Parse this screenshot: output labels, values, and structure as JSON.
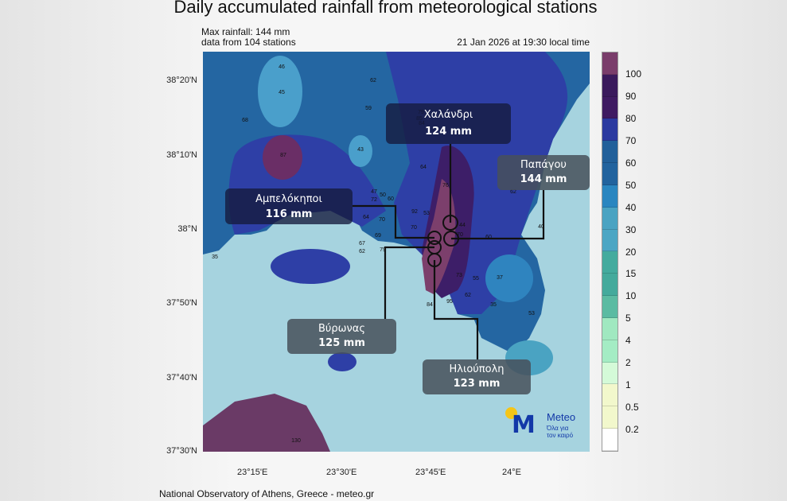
{
  "title": "Daily accumulated rainfall from meteorological stations",
  "max_rainfall": "Max rainfall: 144 mm",
  "stations_count": "data from 104 stations",
  "timestamp": "21 Jan 2026 at 19:30 local time",
  "footer": "National Observatory of Athens, Greece - meteo.gr",
  "lat_ticks": [
    "38°20'N",
    "38°10'N",
    "38°N",
    "37°50'N",
    "37°40'N",
    "37°30'N"
  ],
  "lon_ticks": [
    "23°15'E",
    "23°30'E",
    "23°45'E",
    "24°E"
  ],
  "colorbar": {
    "labels": [
      "100",
      "90",
      "80",
      "70",
      "60",
      "50",
      "40",
      "30",
      "20",
      "15",
      "10",
      "5",
      "4",
      "2",
      "1",
      "0.5",
      "0.2"
    ],
    "colors": [
      "#7a3d6b",
      "#3a1a5c",
      "#3f1b62",
      "#2b3aa0",
      "#22609a",
      "#22639e",
      "#2a86c0",
      "#4aa3c2",
      "#4ca6c4",
      "#44ab9e",
      "#44aa9c",
      "#5bbba2",
      "#a0e8c0",
      "#a4ecc4",
      "#d4fad8",
      "#f2f8cc",
      "#f2f8cc",
      "#ffffff"
    ]
  },
  "colors": {
    "sea": "#a6d3df",
    "land60": "#2466a2",
    "land70": "#2e3fa6",
    "land80": "#3d1e68",
    "land100": "#7c3f6c",
    "light40": "#4a9fcb"
  },
  "callouts": [
    {
      "name": "Χαλάνδρι",
      "value": "124 mm",
      "circle": "124"
    },
    {
      "name": "Παπάγου",
      "value": "144 mm",
      "circle": "144"
    },
    {
      "name": "Αμπελόκηποι",
      "value": "116 mm",
      "circle": "116"
    },
    {
      "name": "Βύρωνας",
      "value": "125 mm",
      "circle": "125"
    },
    {
      "name": "Ηλιούπολη",
      "value": "123 mm",
      "circle": "123"
    }
  ],
  "station_values": [
    "46",
    "45",
    "62",
    "59",
    "68",
    "87",
    "43",
    "72",
    "79",
    "64",
    "85",
    "84",
    "47",
    "50",
    "60",
    "53",
    "92",
    "76",
    "62",
    "64",
    "70",
    "69",
    "44",
    "70",
    "60",
    "40",
    "67",
    "62",
    "79",
    "73",
    "55",
    "37",
    "62",
    "35",
    "53",
    "95",
    "84",
    "70",
    "130",
    "35"
  ],
  "logo": {
    "name": "Meteo",
    "tagline1": "Όλα για",
    "tagline2": "τον καιρό"
  }
}
